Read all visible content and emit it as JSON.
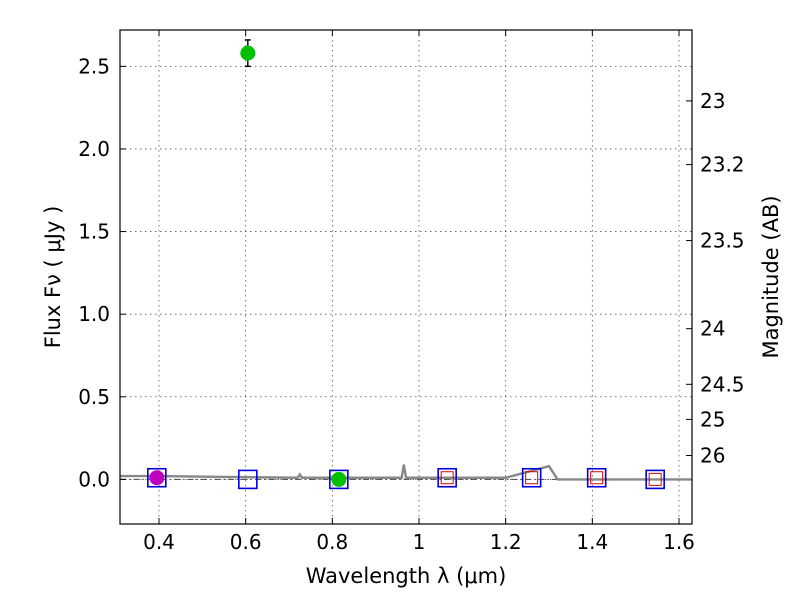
{
  "chart_data": {
    "type": "scatter",
    "title": "",
    "xlabel": "Wavelength  λ (μm)",
    "ylabel": "Flux  Fν  ( μJy )",
    "y2label": "Magnitude (AB)",
    "xlim": [
      0.31,
      1.63
    ],
    "ylim": [
      -0.27,
      2.72
    ],
    "grid": true,
    "x_ticks": [
      0.4,
      0.6,
      0.8,
      1.0,
      1.2,
      1.4,
      1.6
    ],
    "x_tick_labels": [
      "0.4",
      "0.6",
      "0.8",
      "1",
      "1.2",
      "1.4",
      "1.6"
    ],
    "y_ticks": [
      0.0,
      0.5,
      1.0,
      1.5,
      2.0,
      2.5
    ],
    "y_tick_labels": [
      "0.0",
      "0.5",
      "1.0",
      "1.5",
      "2.0",
      "2.5"
    ],
    "mag_ticks": [
      23,
      23.2,
      23.5,
      24,
      24.5,
      25,
      26
    ],
    "mag_tick_labels": [
      "23",
      "23.2",
      "23.5",
      "24",
      "24.5",
      "25",
      "26"
    ],
    "series": [
      {
        "name": "observed flux (green)",
        "color": "#00c000",
        "points": [
          {
            "x": 0.605,
            "y": 2.58,
            "err": 0.08
          },
          {
            "x": 0.815,
            "y": 0.0,
            "err": 0.02
          }
        ]
      },
      {
        "name": "observed flux (magenta)",
        "color": "#c000c0",
        "points": [
          {
            "x": 0.395,
            "y": 0.01,
            "err": 0.03
          }
        ]
      },
      {
        "name": "model photometry (blue squares)",
        "color": "#0000dd",
        "points": [
          {
            "x": 0.395,
            "y": 0.01
          },
          {
            "x": 0.605,
            "y": 0.0
          },
          {
            "x": 0.815,
            "y": 0.0
          },
          {
            "x": 1.065,
            "y": 0.01
          },
          {
            "x": 1.26,
            "y": 0.01
          },
          {
            "x": 1.41,
            "y": 0.01
          },
          {
            "x": 1.545,
            "y": 0.0
          }
        ]
      },
      {
        "name": "upper limits (red squares)",
        "color": "#dd0000",
        "points": [
          {
            "x": 1.065,
            "y": 0.01
          },
          {
            "x": 1.26,
            "y": 0.01
          },
          {
            "x": 1.41,
            "y": 0.01
          },
          {
            "x": 1.545,
            "y": 0.0
          }
        ]
      },
      {
        "name": "SED model (gray line)",
        "color": "#888888",
        "points": [
          {
            "x": 0.31,
            "y": 0.02
          },
          {
            "x": 0.4,
            "y": 0.02
          },
          {
            "x": 0.55,
            "y": 0.015
          },
          {
            "x": 0.72,
            "y": 0.01
          },
          {
            "x": 0.725,
            "y": 0.03
          },
          {
            "x": 0.73,
            "y": 0.01
          },
          {
            "x": 0.96,
            "y": 0.01
          },
          {
            "x": 0.965,
            "y": 0.09
          },
          {
            "x": 0.97,
            "y": 0.01
          },
          {
            "x": 1.2,
            "y": 0.01
          },
          {
            "x": 1.3,
            "y": 0.08
          },
          {
            "x": 1.32,
            "y": 0.0
          },
          {
            "x": 1.63,
            "y": 0.0
          }
        ]
      }
    ],
    "zero_line": 0.0
  }
}
